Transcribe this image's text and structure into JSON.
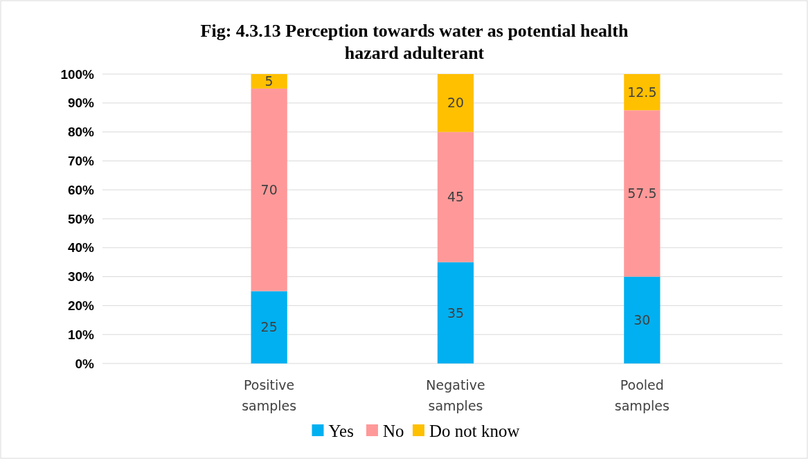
{
  "chart_data": {
    "type": "bar",
    "stacked": true,
    "title": "Fig: 4.3.13 Perception towards water as potential health hazard adulterant",
    "categories": [
      "Positive samples",
      "Negative samples",
      "Pooled samples"
    ],
    "series": [
      {
        "name": "Yes",
        "color": "#00b0f0",
        "values": [
          25,
          35,
          30
        ]
      },
      {
        "name": "No",
        "color": "#ff9999",
        "values": [
          70,
          45,
          57.5
        ]
      },
      {
        "name": "Do not know",
        "color": "#ffc000",
        "values": [
          5,
          20,
          12.5
        ]
      }
    ],
    "ylim": [
      0,
      100
    ],
    "yticks": [
      {
        "value": 0,
        "label": "0%"
      },
      {
        "value": 10,
        "label": "10%"
      },
      {
        "value": 20,
        "label": "20%"
      },
      {
        "value": 30,
        "label": "30%"
      },
      {
        "value": 40,
        "label": "40%"
      },
      {
        "value": 50,
        "label": "50%"
      },
      {
        "value": 60,
        "label": "60%"
      },
      {
        "value": 70,
        "label": "70%"
      },
      {
        "value": 80,
        "label": "80%"
      },
      {
        "value": 90,
        "label": "90%"
      },
      {
        "value": 100,
        "label": "100%"
      }
    ],
    "grid": "y",
    "data_labels": true,
    "legend": "bottom"
  }
}
